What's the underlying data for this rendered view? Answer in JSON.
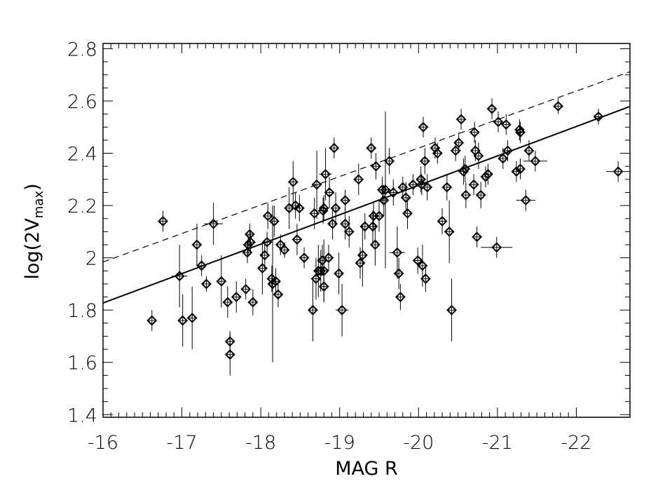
{
  "chart_data": {
    "type": "scatter",
    "x_label": "MAG R",
    "y_label_parts": [
      "log(2V",
      "max",
      ")"
    ],
    "xlim": [
      -16,
      -22.68
    ],
    "xticks": [
      -16,
      -17,
      -18,
      -19,
      -20,
      -21,
      -22
    ],
    "ylim": [
      1.39,
      2.82
    ],
    "yticks": [
      1.4,
      1.6,
      1.8,
      2.0,
      2.2,
      2.4,
      2.6,
      2.8
    ],
    "color": "#000000",
    "x": [
      -16.62,
      -16.76,
      -16.97,
      -17.01,
      -17.13,
      -17.19,
      -17.25,
      -17.31,
      -17.4,
      -17.5,
      -17.58,
      -17.61,
      -17.61,
      -17.69,
      -17.81,
      -17.83,
      -17.84,
      -17.86,
      -17.87,
      -17.9,
      -18.02,
      -18.05,
      -18.08,
      -18.09,
      -18.14,
      -18.15,
      -18.17,
      -18.19,
      -18.22,
      -18.25,
      -18.3,
      -18.36,
      -18.41,
      -18.44,
      -18.46,
      -18.49,
      -18.55,
      -18.66,
      -18.68,
      -18.7,
      -18.71,
      -18.73,
      -18.76,
      -18.78,
      -18.79,
      -18.8,
      -18.8,
      -18.8,
      -18.82,
      -18.86,
      -18.87,
      -18.91,
      -18.93,
      -18.95,
      -18.99,
      -19.03,
      -19.07,
      -19.07,
      -19.12,
      -19.24,
      -19.26,
      -19.29,
      -19.32,
      -19.4,
      -19.42,
      -19.43,
      -19.45,
      -19.46,
      -19.5,
      -19.54,
      -19.56,
      -19.58,
      -19.63,
      -19.68,
      -19.73,
      -19.75,
      -19.77,
      -19.8,
      -19.84,
      -19.86,
      -19.93,
      -19.99,
      -20.03,
      -20.04,
      -20.06,
      -20.05,
      -20.08,
      -20.09,
      -20.11,
      -20.21,
      -20.24,
      -20.3,
      -20.36,
      -20.39,
      -20.42,
      -20.47,
      -20.51,
      -20.54,
      -20.57,
      -20.59,
      -20.6,
      -20.7,
      -20.71,
      -20.72,
      -20.74,
      -20.76,
      -20.79,
      -20.85,
      -20.88,
      -20.93,
      -20.99,
      -21.01,
      -21.07,
      -21.11,
      -21.13,
      -21.24,
      -21.28,
      -21.29,
      -21.29,
      -21.36,
      -21.4,
      -21.48,
      -21.77,
      -22.28,
      -22.53
    ],
    "y": [
      1.76,
      2.14,
      1.93,
      1.76,
      1.77,
      2.05,
      1.97,
      1.9,
      2.13,
      1.91,
      1.83,
      1.68,
      1.63,
      1.85,
      1.88,
      2.02,
      2.05,
      2.09,
      2.06,
      1.83,
      1.96,
      2.01,
      2.06,
      2.16,
      1.92,
      1.9,
      2.14,
      1.91,
      1.86,
      2.05,
      2.03,
      2.19,
      2.29,
      2.2,
      2.07,
      2.19,
      2.0,
      1.8,
      2.17,
      1.92,
      2.28,
      1.95,
      1.95,
      1.99,
      2.18,
      1.95,
      1.89,
      2.19,
      2.32,
      2.0,
      2.25,
      2.13,
      2.42,
      2.19,
      1.94,
      1.8,
      2.22,
      2.13,
      2.1,
      2.3,
      1.98,
      2.01,
      2.12,
      2.42,
      2.12,
      2.16,
      2.05,
      2.35,
      2.16,
      2.26,
      2.22,
      2.26,
      2.37,
      2.25,
      2.02,
      1.94,
      1.85,
      2.27,
      2.23,
      2.17,
      2.28,
      1.99,
      2.3,
      2.28,
      2.5,
      1.97,
      2.37,
      1.92,
      2.27,
      2.42,
      2.4,
      2.14,
      2.27,
      2.1,
      1.8,
      2.41,
      2.44,
      2.53,
      2.33,
      2.34,
      2.24,
      2.28,
      2.48,
      2.41,
      2.08,
      2.39,
      2.24,
      2.31,
      2.32,
      2.57,
      2.04,
      2.52,
      2.38,
      2.51,
      2.41,
      2.33,
      2.49,
      2.48,
      2.34,
      2.22,
      2.41,
      2.37,
      2.58,
      2.54,
      2.33
    ],
    "yerr": [
      0.04,
      0.04,
      0.12,
      0.1,
      0.12,
      0.08,
      0.04,
      0.03,
      0.08,
      0.1,
      0.06,
      0.04,
      0.08,
      0.06,
      0.04,
      0.04,
      0.04,
      0.04,
      0.04,
      0.05,
      0.1,
      0.06,
      0.04,
      0.05,
      0.05,
      0.3,
      0.06,
      0.05,
      0.05,
      0.04,
      0.03,
      0.08,
      0.08,
      0.05,
      0.06,
      0.05,
      0.04,
      0.12,
      0.06,
      0.08,
      0.13,
      0.1,
      0.08,
      0.06,
      0.05,
      0.12,
      0.06,
      0.05,
      0.1,
      0.05,
      0.06,
      0.06,
      0.04,
      0.06,
      0.08,
      0.1,
      0.04,
      0.06,
      0.06,
      0.06,
      0.06,
      0.12,
      0.05,
      0.04,
      0.06,
      0.05,
      0.08,
      0.05,
      0.06,
      0.05,
      0.06,
      0.3,
      0.05,
      0.05,
      0.1,
      0.06,
      0.05,
      0.04,
      0.06,
      0.06,
      0.04,
      0.05,
      0.05,
      0.04,
      0.04,
      0.08,
      0.05,
      0.05,
      0.05,
      0.04,
      0.04,
      0.05,
      0.05,
      0.12,
      0.12,
      0.04,
      0.04,
      0.04,
      0.05,
      0.05,
      0.05,
      0.04,
      0.04,
      0.04,
      0.04,
      0.05,
      0.05,
      0.04,
      0.04,
      0.04,
      0.04,
      0.04,
      0.04,
      0.04,
      0.04,
      0.04,
      0.04,
      0.04,
      0.04,
      0.04,
      0.04,
      0.04,
      0.03,
      0.03,
      0.04
    ],
    "xerr": [
      0.04,
      0.04,
      0.1,
      0.04,
      0.04,
      0.04,
      0.04,
      0.04,
      0.12,
      0.04,
      0.04,
      0.04,
      0.04,
      0.04,
      0.04,
      0.04,
      0.04,
      0.04,
      0.04,
      0.04,
      0.04,
      0.04,
      0.04,
      0.04,
      0.04,
      0.04,
      0.04,
      0.04,
      0.04,
      0.04,
      0.04,
      0.04,
      0.04,
      0.04,
      0.04,
      0.04,
      0.04,
      0.04,
      0.04,
      0.04,
      0.04,
      0.04,
      0.04,
      0.04,
      0.04,
      0.04,
      0.04,
      0.04,
      0.08,
      0.04,
      0.04,
      0.04,
      0.04,
      0.04,
      0.04,
      0.08,
      0.04,
      0.04,
      0.04,
      0.04,
      0.04,
      0.04,
      0.04,
      0.04,
      0.04,
      0.04,
      0.04,
      0.04,
      0.04,
      0.04,
      0.04,
      0.04,
      0.04,
      0.08,
      0.1,
      0.04,
      0.04,
      0.04,
      0.04,
      0.04,
      0.04,
      0.04,
      0.04,
      0.04,
      0.04,
      0.04,
      0.04,
      0.04,
      0.04,
      0.04,
      0.04,
      0.04,
      0.04,
      0.04,
      0.04,
      0.04,
      0.04,
      0.04,
      0.04,
      0.04,
      0.04,
      0.04,
      0.04,
      0.04,
      0.04,
      0.06,
      0.04,
      0.04,
      0.04,
      0.04,
      0.2,
      0.04,
      0.04,
      0.04,
      0.04,
      0.04,
      0.04,
      0.04,
      0.04,
      0.12,
      0.04,
      0.15,
      0.04,
      0.04,
      0.15
    ],
    "lines": [
      {
        "style": "solid",
        "x": [
          -16,
          -22.68
        ],
        "y": [
          1.827,
          2.579
        ]
      },
      {
        "style": "dashed",
        "x": [
          -16,
          -22.68
        ],
        "y": [
          1.984,
          2.712
        ]
      }
    ]
  }
}
